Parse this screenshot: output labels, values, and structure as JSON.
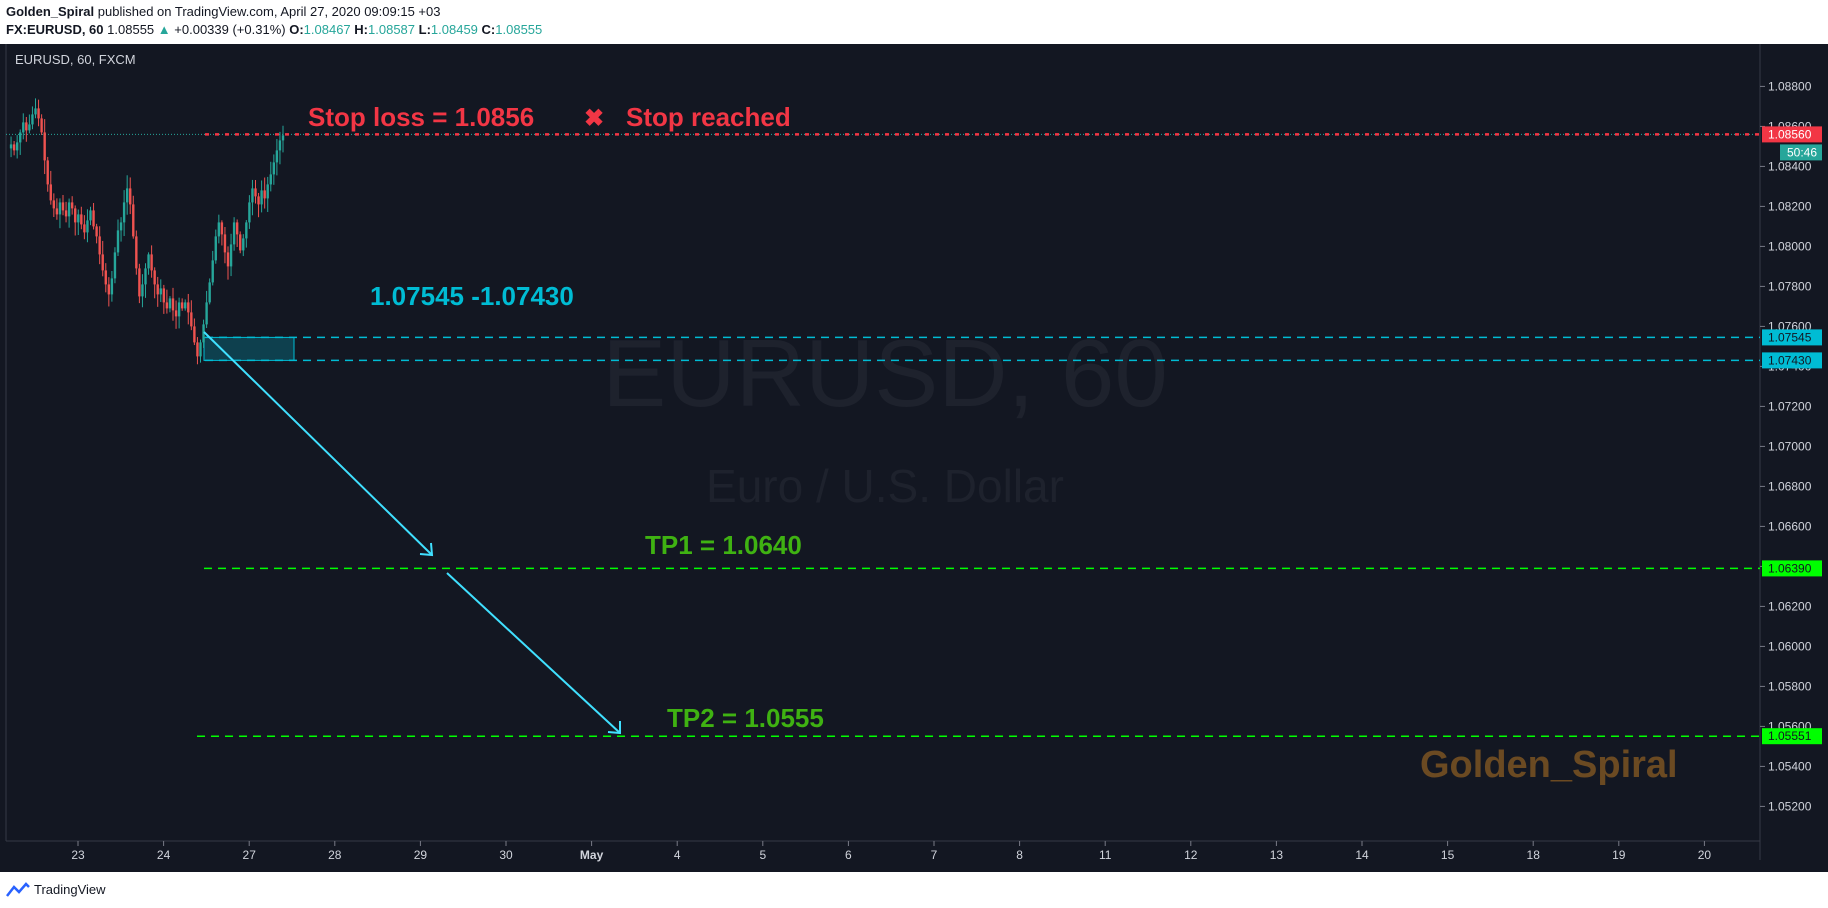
{
  "header": {
    "author": "Golden_Spiral",
    "published_text": "published on TradingView.com, April 27, 2020 09:09:15 +03",
    "symbol": "FX:EURUSD, 60",
    "last": "1.08555",
    "change_arrow": "▲",
    "change": "+0.00339 (+0.31%)",
    "o_label": "O:",
    "o": "1.08467",
    "h_label": "H:",
    "h": "1.08587",
    "l_label": "L:",
    "l": "1.08459",
    "c_label": "C:",
    "c": "1.08555"
  },
  "chart_label": "EURUSD, 60, FXCM",
  "watermark": {
    "title": "EURUSD, 60",
    "subtitle": "Euro / U.S. Dollar"
  },
  "author_watermark": "Golden_Spiral",
  "footer": {
    "brand": "TradingView"
  },
  "colors": {
    "background": "#131722",
    "up": "#26a69a",
    "down": "#ef5350",
    "stop": "#f23645",
    "tp": "#00ff00",
    "zone": "#00bcd4",
    "arrow": "#40e0ff",
    "author": "#6b4a22"
  },
  "chart_data": {
    "type": "candlestick",
    "symbol": "EURUSD",
    "timeframe": "60",
    "ylim": [
      1.0505,
      1.0895
    ],
    "y_ticks": [
      "1.08800",
      "1.08600",
      "1.08400",
      "1.08200",
      "1.08000",
      "1.07800",
      "1.07600",
      "1.07400",
      "1.07200",
      "1.07000",
      "1.06800",
      "1.06600",
      "1.06400",
      "1.06200",
      "1.06000",
      "1.05800",
      "1.05600",
      "1.05400",
      "1.05200"
    ],
    "x_ticks": [
      "23",
      "24",
      "27",
      "28",
      "29",
      "30",
      "May",
      "4",
      "5",
      "6",
      "7",
      "8",
      "11",
      "12",
      "13",
      "14",
      "15",
      "18",
      "19",
      "20"
    ],
    "price_tags": [
      {
        "value": 1.0856,
        "text": "1.08560",
        "kind": "stop"
      },
      {
        "value": 1.07545,
        "text": "1.07545",
        "kind": "zone"
      },
      {
        "value": 1.0743,
        "text": "1.07430",
        "kind": "zone"
      },
      {
        "value": 1.0639,
        "text": "1.06390",
        "kind": "tp"
      },
      {
        "value": 1.05551,
        "text": "1.05551",
        "kind": "tp"
      }
    ],
    "countdown": "50:46",
    "annotations": {
      "stop_loss": "Stop loss  = 1.0856",
      "stop_mark": "✖",
      "stop_reached": "Stop reached",
      "zone": "1.07545 -1.07430",
      "tp1": "TP1 = 1.0640",
      "tp2": "TP2 = 1.0555"
    },
    "levels": {
      "stop": 1.0856,
      "zone_high": 1.07545,
      "zone_low": 1.0743,
      "tp1": 1.0639,
      "tp2": 1.05551
    },
    "close_path": [
      1.0849,
      1.0851,
      1.0848,
      1.0852,
      1.0857,
      1.0862,
      1.0858,
      1.0861,
      1.0866,
      1.0869,
      1.0864,
      1.0857,
      1.0843,
      1.0831,
      1.0823,
      1.0819,
      1.0816,
      1.0822,
      1.0818,
      1.0815,
      1.0822,
      1.0819,
      1.0812,
      1.0816,
      1.0811,
      1.0807,
      1.0813,
      1.0818,
      1.081,
      1.0805,
      1.0796,
      1.0788,
      1.0781,
      1.0776,
      1.0784,
      1.0797,
      1.0808,
      1.0812,
      1.0822,
      1.0829,
      1.0821,
      1.0805,
      1.0789,
      1.0775,
      1.0781,
      1.0789,
      1.0796,
      1.0788,
      1.0781,
      1.0776,
      1.0779,
      1.0772,
      1.0769,
      1.0774,
      1.0768,
      1.0765,
      1.0772,
      1.0769,
      1.0772,
      1.0767,
      1.076,
      1.0752,
      1.0745,
      1.0752,
      1.0761,
      1.0772,
      1.0782,
      1.0793,
      1.0805,
      1.0812,
      1.0806,
      1.0797,
      1.079,
      1.0801,
      1.0812,
      1.0806,
      1.0798,
      1.0804,
      1.0812,
      1.0822,
      1.0829,
      1.0825,
      1.0821,
      1.0828,
      1.0824,
      1.0831,
      1.0836,
      1.0842,
      1.0848,
      1.0853,
      1.08555
    ]
  }
}
